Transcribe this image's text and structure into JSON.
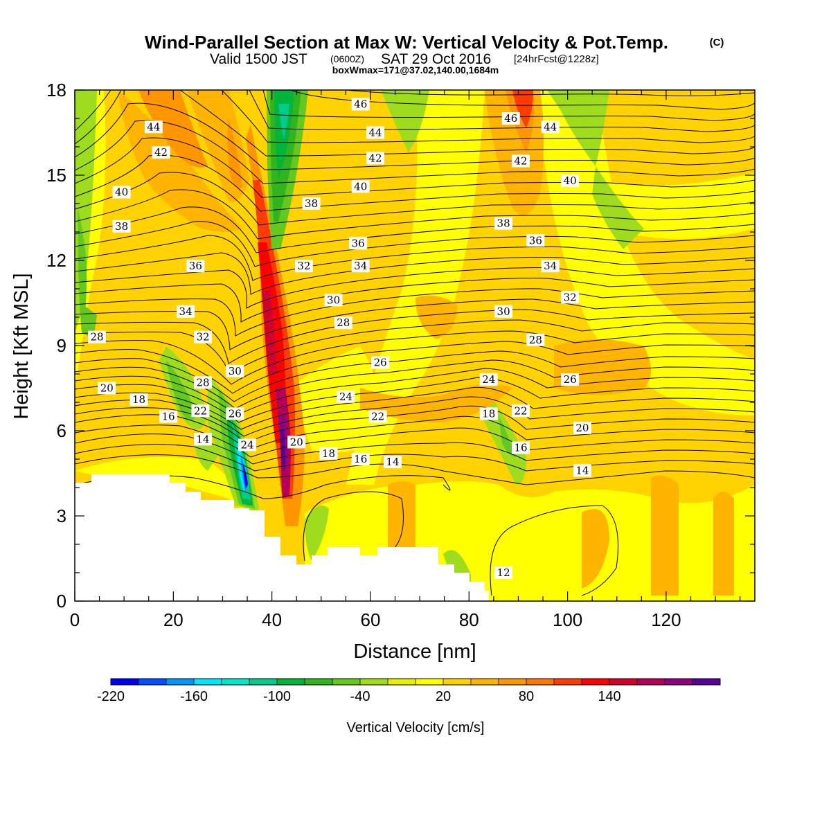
{
  "header": {
    "title": "Wind-Parallel Section at Max W: Vertical Velocity & Pot.Temp.",
    "title_mark": "(C)",
    "line2_a": "Valid 1500 JST",
    "line2_b": "(0600Z)",
    "line2_c": "SAT 29 Oct 2016",
    "line2_d": "[24hrFcst@1228z]",
    "line3": "boxWmax=171@37.02,140.00,1684m"
  },
  "chart_data": {
    "type": "heatmap",
    "xlabel": "Distance [nm]",
    "ylabel": "Height [Kft MSL]",
    "xlim": [
      0,
      138
    ],
    "ylim": [
      0,
      18
    ],
    "x_ticks": [
      "0",
      "20",
      "40",
      "60",
      "80",
      "100",
      "120"
    ],
    "y_ticks": [
      "0",
      "3",
      "6",
      "9",
      "12",
      "15",
      "18"
    ],
    "colorbar": {
      "label": "Vertical Velocity [cm/s]",
      "tick_labels": [
        "-220",
        "-160",
        "-100",
        "-40",
        "20",
        "80",
        "140"
      ],
      "colors": [
        "#0000f0",
        "#0050ff",
        "#0096ff",
        "#00e6ff",
        "#00e6c8",
        "#00cd8c",
        "#00b43c",
        "#32b41e",
        "#64c81e",
        "#a0dc1e",
        "#e6f000",
        "#ffff00",
        "#ffd200",
        "#ffb400",
        "#ff9600",
        "#ff7800",
        "#ff3c00",
        "#ff0000",
        "#d2002d",
        "#b4005a",
        "#8c0082",
        "#5a0096"
      ]
    },
    "field_features": [
      {
        "kind": "updraft-max",
        "x": 42,
        "y": 6.0,
        "value": 171
      },
      {
        "kind": "updraft-plume",
        "x": 39,
        "y": 12.0,
        "value": 110
      },
      {
        "kind": "downdraft-min",
        "x": 35.5,
        "y": 4.5,
        "value": -220
      },
      {
        "kind": "downdraft-plume",
        "x": 41,
        "y": 16.0,
        "value": -110
      }
    ],
    "theta_contour_labels": [
      {
        "text": "44",
        "x": 16,
        "y": 16.7
      },
      {
        "text": "42",
        "x": 17.5,
        "y": 15.8
      },
      {
        "text": "40",
        "x": 9.5,
        "y": 14.4
      },
      {
        "text": "38",
        "x": 9.5,
        "y": 13.2
      },
      {
        "text": "36",
        "x": 24.5,
        "y": 11.8
      },
      {
        "text": "34",
        "x": 22.5,
        "y": 10.2
      },
      {
        "text": "32",
        "x": 26,
        "y": 9.3
      },
      {
        "text": "28",
        "x": 4.5,
        "y": 9.3
      },
      {
        "text": "30",
        "x": 32.5,
        "y": 8.1
      },
      {
        "text": "28",
        "x": 26,
        "y": 7.7
      },
      {
        "text": "26",
        "x": 32.5,
        "y": 6.6
      },
      {
        "text": "20",
        "x": 6.5,
        "y": 7.5
      },
      {
        "text": "18",
        "x": 13,
        "y": 7.1
      },
      {
        "text": "16",
        "x": 19,
        "y": 6.5
      },
      {
        "text": "22",
        "x": 25.5,
        "y": 6.7
      },
      {
        "text": "14",
        "x": 26,
        "y": 5.7
      },
      {
        "text": "24",
        "x": 35,
        "y": 5.5
      },
      {
        "text": "20",
        "x": 45,
        "y": 5.6
      },
      {
        "text": "18",
        "x": 51.5,
        "y": 5.2
      },
      {
        "text": "16",
        "x": 58,
        "y": 5.0
      },
      {
        "text": "14",
        "x": 64.5,
        "y": 4.9
      },
      {
        "text": "46",
        "x": 58,
        "y": 17.5
      },
      {
        "text": "44",
        "x": 61,
        "y": 16.5
      },
      {
        "text": "42",
        "x": 61,
        "y": 15.6
      },
      {
        "text": "40",
        "x": 58,
        "y": 14.6
      },
      {
        "text": "38",
        "x": 48,
        "y": 14.0
      },
      {
        "text": "36",
        "x": 57.5,
        "y": 12.6
      },
      {
        "text": "34",
        "x": 58,
        "y": 11.8
      },
      {
        "text": "32",
        "x": 46.5,
        "y": 11.8
      },
      {
        "text": "30",
        "x": 52.5,
        "y": 10.6
      },
      {
        "text": "28",
        "x": 54.5,
        "y": 9.8
      },
      {
        "text": "26",
        "x": 62,
        "y": 8.4
      },
      {
        "text": "24",
        "x": 55,
        "y": 7.2
      },
      {
        "text": "22",
        "x": 61.5,
        "y": 6.5
      },
      {
        "text": "46",
        "x": 88.5,
        "y": 17.0
      },
      {
        "text": "44",
        "x": 96.5,
        "y": 16.7
      },
      {
        "text": "42",
        "x": 90.5,
        "y": 15.5
      },
      {
        "text": "40",
        "x": 100.5,
        "y": 14.8
      },
      {
        "text": "38",
        "x": 87,
        "y": 13.3
      },
      {
        "text": "36",
        "x": 93.5,
        "y": 12.7
      },
      {
        "text": "34",
        "x": 96.5,
        "y": 11.8
      },
      {
        "text": "32",
        "x": 100.5,
        "y": 10.7
      },
      {
        "text": "30",
        "x": 87,
        "y": 10.2
      },
      {
        "text": "28",
        "x": 93.5,
        "y": 9.2
      },
      {
        "text": "24",
        "x": 84,
        "y": 7.8
      },
      {
        "text": "26",
        "x": 100.5,
        "y": 7.8
      },
      {
        "text": "22",
        "x": 90.5,
        "y": 6.7
      },
      {
        "text": "18",
        "x": 84,
        "y": 6.6
      },
      {
        "text": "20",
        "x": 103,
        "y": 6.1
      },
      {
        "text": "16",
        "x": 90.5,
        "y": 5.4
      },
      {
        "text": "14",
        "x": 103,
        "y": 4.6
      },
      {
        "text": "12",
        "x": 87,
        "y": 1.0
      }
    ]
  }
}
